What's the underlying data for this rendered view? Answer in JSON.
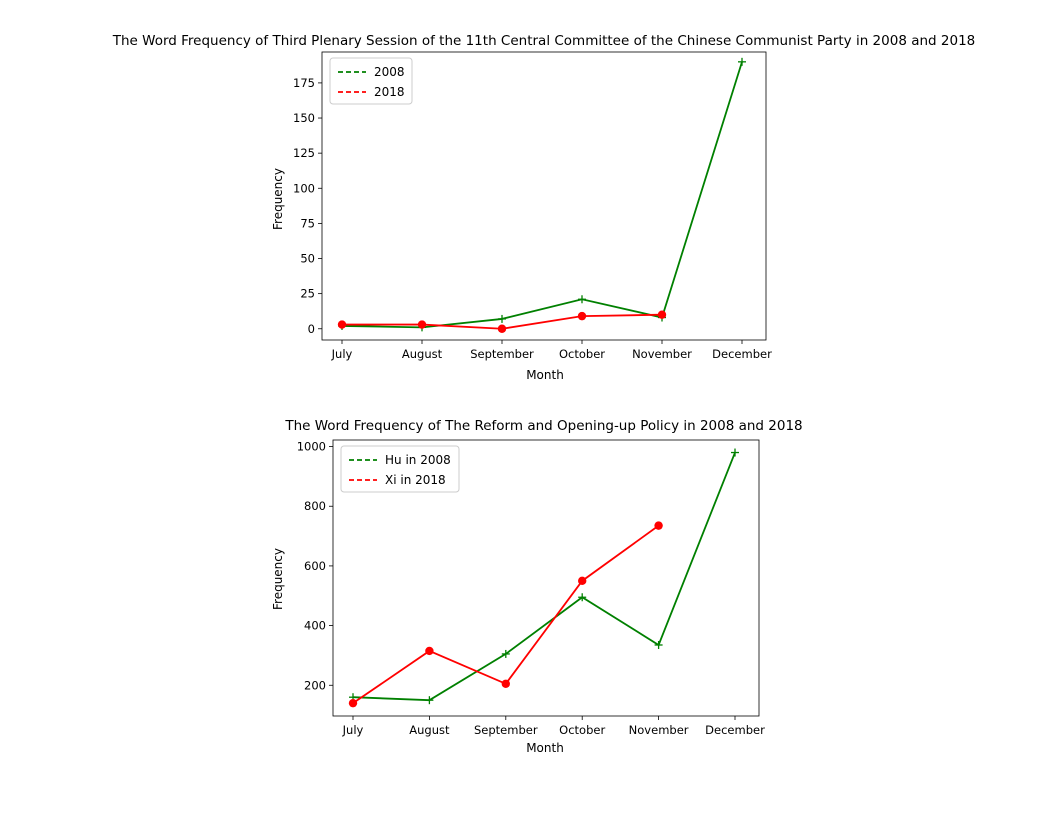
{
  "chart_data": [
    {
      "type": "line",
      "title": "The Word Frequency of Third Plenary Session of the 11th Central Committee of the Chinese Communist Party in 2008 and 2018",
      "xlabel": "Month",
      "ylabel": "Frequency",
      "categories": [
        "July",
        "August",
        "September",
        "October",
        "November",
        "December"
      ],
      "ylim": [
        -8,
        197
      ],
      "yticks": [
        0,
        25,
        50,
        75,
        100,
        125,
        150,
        175
      ],
      "legend_position": "top-left",
      "grid": false,
      "series": [
        {
          "name": "2008",
          "color": "#008000",
          "marker": "plus",
          "values": [
            2,
            1,
            7,
            21,
            8,
            190
          ]
        },
        {
          "name": "2018",
          "color": "#ff0000",
          "marker": "circle",
          "values": [
            3,
            3,
            0,
            9,
            10,
            null
          ]
        }
      ]
    },
    {
      "type": "line",
      "title": "The Word Frequency of The Reform and Opening-up Policy in 2008 and 2018",
      "xlabel": "Month",
      "ylabel": "Frequency",
      "categories": [
        "July",
        "August",
        "September",
        "October",
        "November",
        "December"
      ],
      "ylim": [
        97,
        1022
      ],
      "yticks": [
        200,
        400,
        600,
        800,
        1000
      ],
      "legend_position": "top-left",
      "grid": false,
      "series": [
        {
          "name": "Hu in 2008",
          "color": "#008000",
          "marker": "plus",
          "values": [
            160,
            150,
            305,
            495,
            335,
            980
          ]
        },
        {
          "name": "Xi in 2018",
          "color": "#ff0000",
          "marker": "circle",
          "values": [
            140,
            315,
            205,
            550,
            735,
            null
          ]
        }
      ]
    }
  ]
}
